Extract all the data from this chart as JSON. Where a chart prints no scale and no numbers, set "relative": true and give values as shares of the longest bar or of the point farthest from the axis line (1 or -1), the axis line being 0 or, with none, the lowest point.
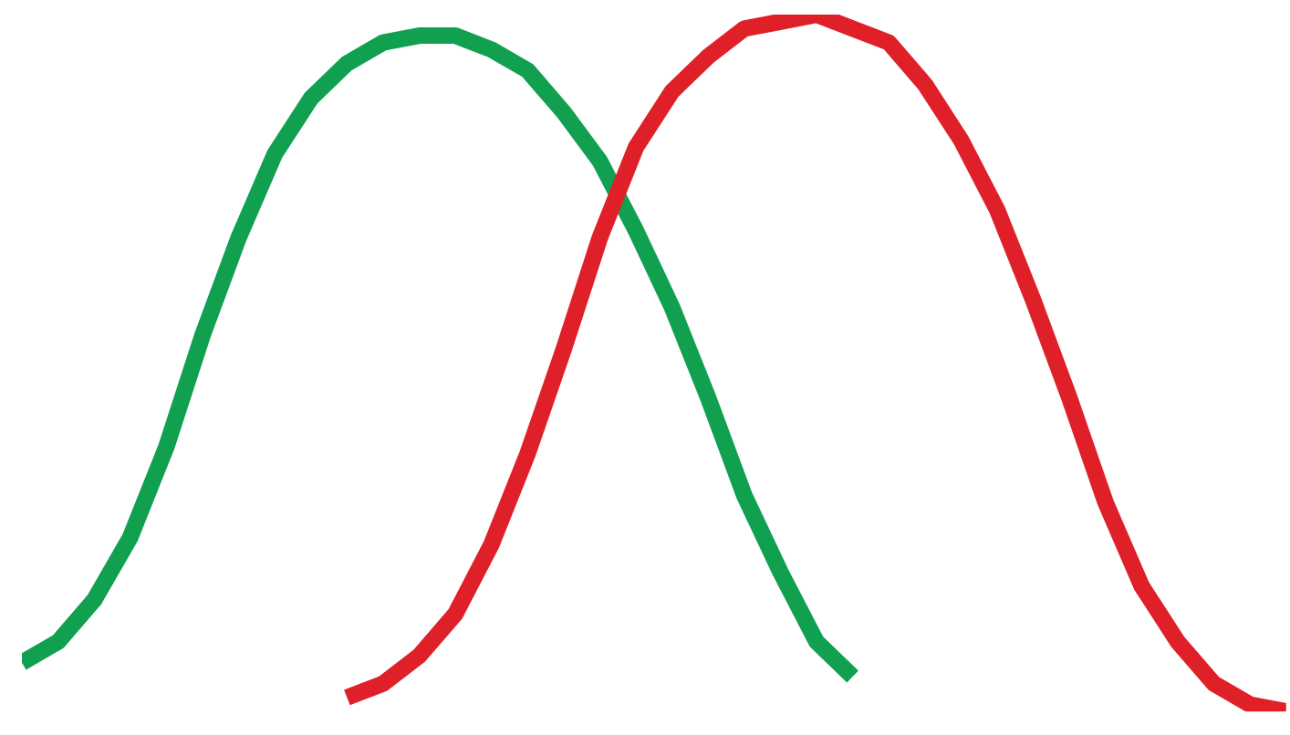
{
  "chart_data": {
    "type": "line",
    "relative": true,
    "legend": false,
    "marker": "none",
    "line_style": "solid",
    "categories": [
      null,
      null,
      null,
      null,
      null,
      null,
      null,
      null,
      null,
      null,
      null,
      null,
      null,
      null,
      null,
      null,
      null,
      null,
      null,
      null,
      null,
      null,
      null,
      null,
      null,
      null,
      null,
      null,
      null,
      null,
      null,
      null,
      null,
      null,
      null,
      null
    ],
    "series": [
      {
        "color": "#10a050",
        "values": [
          0.07,
          0.1,
          0.16,
          0.25,
          0.38,
          0.54,
          0.68,
          0.8,
          0.88,
          0.93,
          0.96,
          0.97,
          0.97,
          0.95,
          0.92,
          0.86,
          0.79,
          0.69,
          0.58,
          0.45,
          0.31,
          0.2,
          0.1,
          0.05,
          null,
          null,
          null,
          null,
          null,
          null,
          null,
          null,
          null,
          null,
          null,
          null
        ]
      },
      {
        "color": "#e02028",
        "values": [
          null,
          null,
          null,
          null,
          null,
          null,
          null,
          null,
          null,
          0.02,
          0.04,
          0.08,
          0.14,
          0.24,
          0.37,
          0.52,
          0.68,
          0.81,
          0.89,
          0.94,
          0.98,
          0.99,
          1.0,
          0.98,
          0.96,
          0.9,
          0.82,
          0.72,
          0.59,
          0.45,
          0.3,
          0.18,
          0.1,
          0.04,
          0.01,
          0.0
        ]
      }
    ]
  }
}
